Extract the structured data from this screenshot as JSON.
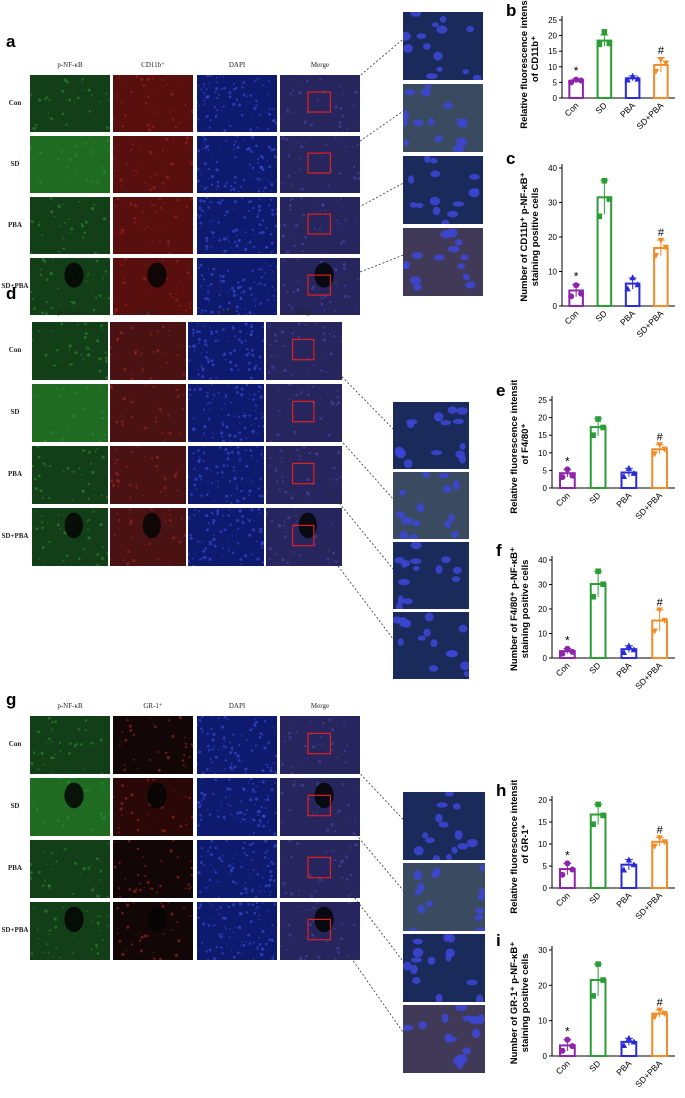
{
  "colors": {
    "Con": "#8e24aa",
    "SD": "#2a9d35",
    "PBA": "#2b2bd6",
    "SD+PBA": "#f28c28"
  },
  "panels": [
    {
      "label": "a",
      "columns": [
        "p-NF-κB",
        "CD11b⁺",
        "DAPI",
        "Merge"
      ],
      "rows": [
        "Con",
        "SD",
        "PBA",
        "SD+PBA"
      ],
      "marker_tone": "#5a0f0f"
    },
    {
      "label": "d",
      "columns": [
        "p-NF-κB",
        "F4/80⁺",
        "DAPI",
        "Merge"
      ],
      "rows": [
        "Con",
        "SD",
        "PBA",
        "SD+PBA"
      ],
      "marker_tone": "#4a1212"
    },
    {
      "label": "g",
      "columns": [
        "p-NF-κB",
        "GR-1⁺",
        "DAPI",
        "Merge"
      ],
      "rows": [
        "Con",
        "SD",
        "PBA",
        "SD+PBA"
      ],
      "marker_tone": "#120606"
    }
  ],
  "chart_data": [
    {
      "label": "b",
      "type": "bar",
      "categories": [
        "Con",
        "SD",
        "PBA",
        "SD+PBA"
      ],
      "ylabel": "Relative fluorescence intensity of CD11b⁺",
      "ylim": [
        0,
        25
      ],
      "yticks": [
        0,
        5,
        10,
        15,
        20,
        25
      ],
      "values": [
        5.5,
        18.4,
        6.3,
        10.6
      ],
      "errors": [
        0.6,
        1.8,
        0.8,
        2.3
      ],
      "points": [
        [
          5.0,
          5.9,
          5.6
        ],
        [
          17.2,
          21.2,
          17.5
        ],
        [
          5.8,
          7.0,
          6.1
        ],
        [
          8.5,
          12.3,
          11.2
        ]
      ],
      "annotations": [
        "*",
        "",
        "",
        "#"
      ]
    },
    {
      "label": "c",
      "type": "bar",
      "categories": [
        "Con",
        "SD",
        "PBA",
        "SD+PBA"
      ],
      "ylabel": "Number of CD11b⁺ p-NF-κB⁺ staining positive cells",
      "ylim": [
        0,
        40
      ],
      "yticks": [
        0,
        10,
        20,
        30,
        40
      ],
      "values": [
        4.5,
        31.5,
        6.5,
        16.8
      ],
      "errors": [
        1.8,
        5.0,
        1.6,
        2.3
      ],
      "points": [
        [
          2.8,
          6.0,
          3.6
        ],
        [
          26.0,
          36.3,
          31.0
        ],
        [
          5.0,
          8.2,
          6.2
        ],
        [
          14.6,
          19.0,
          17.0
        ]
      ],
      "annotations": [
        "*",
        "",
        "",
        "#"
      ]
    },
    {
      "label": "e",
      "type": "bar",
      "categories": [
        "Con",
        "SD",
        "PBA",
        "SD+PBA"
      ],
      "ylabel": "Relative fluorescence intensity of F4/80⁺",
      "ylim": [
        0,
        25
      ],
      "yticks": [
        0,
        5,
        10,
        15,
        20,
        25
      ],
      "values": [
        4.2,
        17.3,
        4.4,
        11.0
      ],
      "errors": [
        1.1,
        2.5,
        1.2,
        1.3
      ],
      "points": [
        [
          3.1,
          5.3,
          3.5
        ],
        [
          15.0,
          19.6,
          17.2
        ],
        [
          3.3,
          5.6,
          4.2
        ],
        [
          9.7,
          12.3,
          11.0
        ]
      ],
      "annotations": [
        "*",
        "",
        "",
        "#"
      ]
    },
    {
      "label": "f",
      "type": "bar",
      "categories": [
        "Con",
        "SD",
        "PBA",
        "SD+PBA"
      ],
      "ylabel": "Number of F4/80⁺ p-NF-κB⁺ staining positive cells",
      "ylim": [
        0,
        40
      ],
      "yticks": [
        0,
        10,
        20,
        30,
        40
      ],
      "values": [
        2.8,
        30.2,
        3.6,
        15.3
      ],
      "errors": [
        1.0,
        5.2,
        1.4,
        4.3
      ],
      "points": [
        [
          1.8,
          3.8,
          2.5
        ],
        [
          25.0,
          35.4,
          30.1
        ],
        [
          2.3,
          5.0,
          3.4
        ],
        [
          11.0,
          19.6,
          15.3
        ]
      ],
      "annotations": [
        "*",
        "",
        "",
        "#"
      ]
    },
    {
      "label": "h",
      "type": "bar",
      "categories": [
        "Con",
        "SD",
        "PBA",
        "SD+PBA"
      ],
      "ylabel": "Relative fluorescence intensity of GR-1⁺",
      "ylim": [
        0,
        20
      ],
      "yticks": [
        0,
        5,
        10,
        15,
        20
      ],
      "values": [
        4.3,
        16.7,
        5.3,
        10.5
      ],
      "errors": [
        1.3,
        2.3,
        1.2,
        1.0
      ],
      "points": [
        [
          3.0,
          5.6,
          4.2
        ],
        [
          14.5,
          19.0,
          16.5
        ],
        [
          4.1,
          6.4,
          5.3
        ],
        [
          9.5,
          11.4,
          10.5
        ]
      ],
      "annotations": [
        "*",
        "",
        "",
        "#"
      ]
    },
    {
      "label": "i",
      "type": "bar",
      "categories": [
        "Con",
        "SD",
        "PBA",
        "SD+PBA"
      ],
      "ylabel": "Number of GR-1⁺ p-NF-κB⁺ staining positive cells",
      "ylim": [
        0,
        30
      ],
      "yticks": [
        0,
        10,
        20,
        30
      ],
      "values": [
        3.0,
        21.5,
        4.0,
        12.0
      ],
      "errors": [
        1.6,
        4.5,
        1.0,
        1.0
      ],
      "points": [
        [
          1.5,
          4.6,
          2.8
        ],
        [
          17.0,
          26.0,
          21.5
        ],
        [
          3.0,
          5.0,
          4.0
        ],
        [
          11.0,
          13.0,
          12.0
        ]
      ],
      "annotations": [
        "*",
        "",
        "",
        "#"
      ]
    }
  ]
}
